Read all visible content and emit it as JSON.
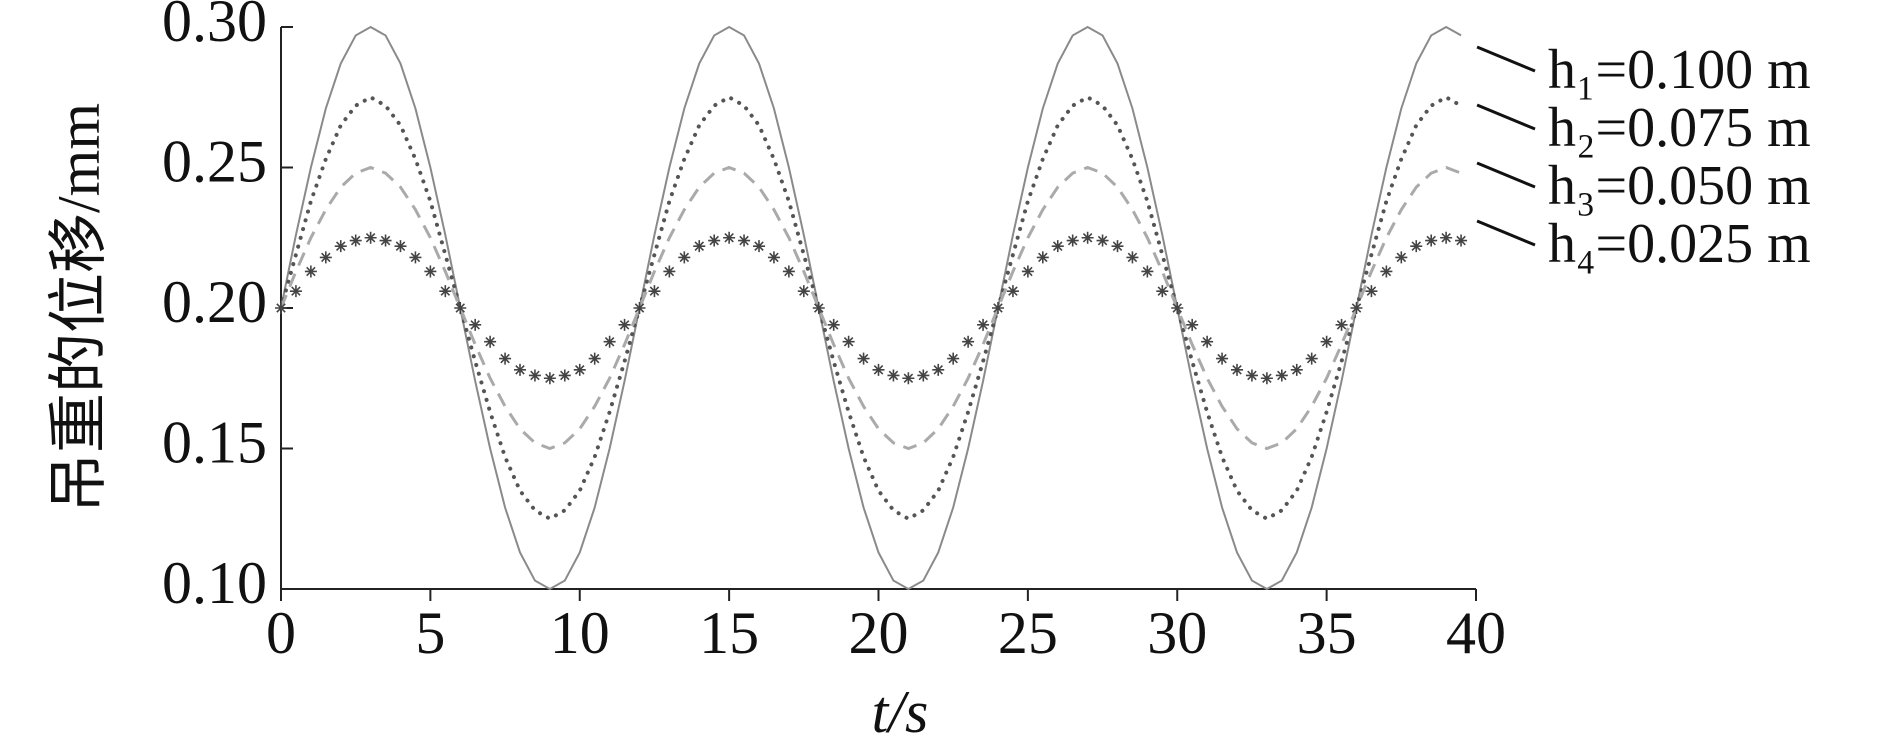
{
  "chart_data": {
    "type": "line",
    "x_label": "t/s",
    "y_label": "吊重的位移/mm",
    "x": [
      0,
      0.5,
      1,
      1.5,
      2,
      2.5,
      3,
      3.5,
      4,
      4.5,
      5,
      5.5,
      6,
      6.5,
      7,
      7.5,
      8,
      8.5,
      9,
      9.5,
      10,
      10.5,
      11,
      11.5,
      12,
      12.5,
      13,
      13.5,
      14,
      14.5,
      15,
      15.5,
      16,
      16.5,
      17,
      17.5,
      18,
      18.5,
      19,
      19.5,
      20,
      20.5,
      21,
      21.5,
      22,
      22.5,
      23,
      23.5,
      24,
      24.5,
      25,
      25.5,
      26,
      26.5,
      27,
      27.5,
      28,
      28.5,
      29,
      29.5,
      30,
      30.5,
      31,
      31.5,
      32,
      32.5,
      33,
      33.5,
      34,
      34.5,
      35,
      35.5,
      36,
      36.5,
      37,
      37.5,
      38,
      38.5,
      39,
      39.5
    ],
    "series": [
      {
        "name": "h₁=0.100 m",
        "color": "#8a8a8a",
        "line_style": "solid",
        "values": [
          0.2,
          0.226,
          0.25,
          0.271,
          0.287,
          0.297,
          0.3,
          0.297,
          0.287,
          0.271,
          0.25,
          0.226,
          0.2,
          0.174,
          0.15,
          0.129,
          0.113,
          0.103,
          0.1,
          0.103,
          0.113,
          0.129,
          0.15,
          0.174,
          0.2,
          0.226,
          0.25,
          0.271,
          0.287,
          0.297,
          0.3,
          0.297,
          0.287,
          0.271,
          0.25,
          0.226,
          0.2,
          0.174,
          0.15,
          0.129,
          0.113,
          0.103,
          0.1,
          0.103,
          0.113,
          0.129,
          0.15,
          0.174,
          0.2,
          0.226,
          0.25,
          0.271,
          0.287,
          0.297,
          0.3,
          0.297,
          0.287,
          0.271,
          0.25,
          0.226,
          0.2,
          0.174,
          0.15,
          0.129,
          0.113,
          0.103,
          0.1,
          0.103,
          0.113,
          0.129,
          0.15,
          0.174,
          0.2,
          0.226,
          0.25,
          0.271,
          0.287,
          0.297,
          0.3,
          0.297
        ]
      },
      {
        "name": "h₂=0.075 m",
        "color": "#555555",
        "line_style": "dotted",
        "values": [
          0.2,
          0.219,
          0.238,
          0.253,
          0.265,
          0.272,
          0.275,
          0.272,
          0.265,
          0.253,
          0.238,
          0.219,
          0.2,
          0.181,
          0.163,
          0.147,
          0.135,
          0.128,
          0.125,
          0.128,
          0.135,
          0.147,
          0.163,
          0.181,
          0.2,
          0.219,
          0.238,
          0.253,
          0.265,
          0.272,
          0.275,
          0.272,
          0.265,
          0.253,
          0.238,
          0.219,
          0.2,
          0.181,
          0.163,
          0.147,
          0.135,
          0.128,
          0.125,
          0.128,
          0.135,
          0.147,
          0.163,
          0.181,
          0.2,
          0.219,
          0.238,
          0.253,
          0.265,
          0.272,
          0.275,
          0.272,
          0.265,
          0.253,
          0.238,
          0.219,
          0.2,
          0.181,
          0.163,
          0.147,
          0.135,
          0.128,
          0.125,
          0.128,
          0.135,
          0.147,
          0.163,
          0.181,
          0.2,
          0.219,
          0.238,
          0.253,
          0.265,
          0.272,
          0.275,
          0.272
        ]
      },
      {
        "name": "h₃=0.050 m",
        "color": "#aaaaaa",
        "line_style": "dashed",
        "values": [
          0.2,
          0.213,
          0.225,
          0.235,
          0.243,
          0.248,
          0.25,
          0.248,
          0.243,
          0.235,
          0.225,
          0.213,
          0.2,
          0.187,
          0.175,
          0.165,
          0.157,
          0.152,
          0.15,
          0.152,
          0.157,
          0.165,
          0.175,
          0.187,
          0.2,
          0.213,
          0.225,
          0.235,
          0.243,
          0.248,
          0.25,
          0.248,
          0.243,
          0.235,
          0.225,
          0.213,
          0.2,
          0.187,
          0.175,
          0.165,
          0.157,
          0.152,
          0.15,
          0.152,
          0.157,
          0.165,
          0.175,
          0.187,
          0.2,
          0.213,
          0.225,
          0.235,
          0.243,
          0.248,
          0.25,
          0.248,
          0.243,
          0.235,
          0.225,
          0.213,
          0.2,
          0.187,
          0.175,
          0.165,
          0.157,
          0.152,
          0.15,
          0.152,
          0.157,
          0.165,
          0.175,
          0.187,
          0.2,
          0.213,
          0.225,
          0.235,
          0.243,
          0.248,
          0.25,
          0.248
        ]
      },
      {
        "name": "h₄=0.025 m",
        "color": "#444444",
        "line_style": "star",
        "values": [
          0.2,
          0.206,
          0.213,
          0.218,
          0.222,
          0.224,
          0.225,
          0.224,
          0.222,
          0.218,
          0.213,
          0.206,
          0.2,
          0.194,
          0.188,
          0.182,
          0.178,
          0.176,
          0.175,
          0.176,
          0.178,
          0.182,
          0.188,
          0.194,
          0.2,
          0.206,
          0.213,
          0.218,
          0.222,
          0.224,
          0.225,
          0.224,
          0.222,
          0.218,
          0.213,
          0.206,
          0.2,
          0.194,
          0.188,
          0.182,
          0.178,
          0.176,
          0.175,
          0.176,
          0.178,
          0.182,
          0.188,
          0.194,
          0.2,
          0.206,
          0.213,
          0.218,
          0.222,
          0.224,
          0.225,
          0.224,
          0.222,
          0.218,
          0.213,
          0.206,
          0.2,
          0.194,
          0.188,
          0.182,
          0.178,
          0.176,
          0.175,
          0.176,
          0.178,
          0.182,
          0.188,
          0.194,
          0.2,
          0.206,
          0.213,
          0.218,
          0.222,
          0.224,
          0.225,
          0.224
        ]
      }
    ],
    "xlim": [
      0,
      40
    ],
    "xticks": [
      0,
      5,
      10,
      15,
      20,
      25,
      30,
      35,
      40
    ],
    "ylim": [
      0.1,
      0.3
    ],
    "yticks": [
      {
        "value": 0.1,
        "label": "0.10"
      },
      {
        "value": 0.15,
        "label": "0.15"
      },
      {
        "value": 0.2,
        "label": "0.20"
      },
      {
        "value": 0.25,
        "label": "0.25"
      },
      {
        "value": 0.3,
        "label": "0.30"
      }
    ],
    "legend": "right"
  }
}
